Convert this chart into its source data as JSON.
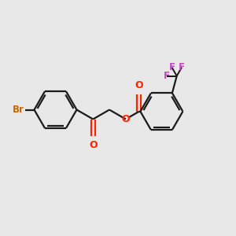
{
  "bg_color": "#e8e8e8",
  "bond_color": "#1a1a1a",
  "oxygen_color": "#ff2200",
  "bromine_color": "#cc6600",
  "fluorine_color": "#cc44cc",
  "line_width": 1.6,
  "figsize": [
    3.0,
    3.0
  ],
  "dpi": 100,
  "xlim": [
    0,
    10
  ],
  "ylim": [
    0,
    10
  ]
}
